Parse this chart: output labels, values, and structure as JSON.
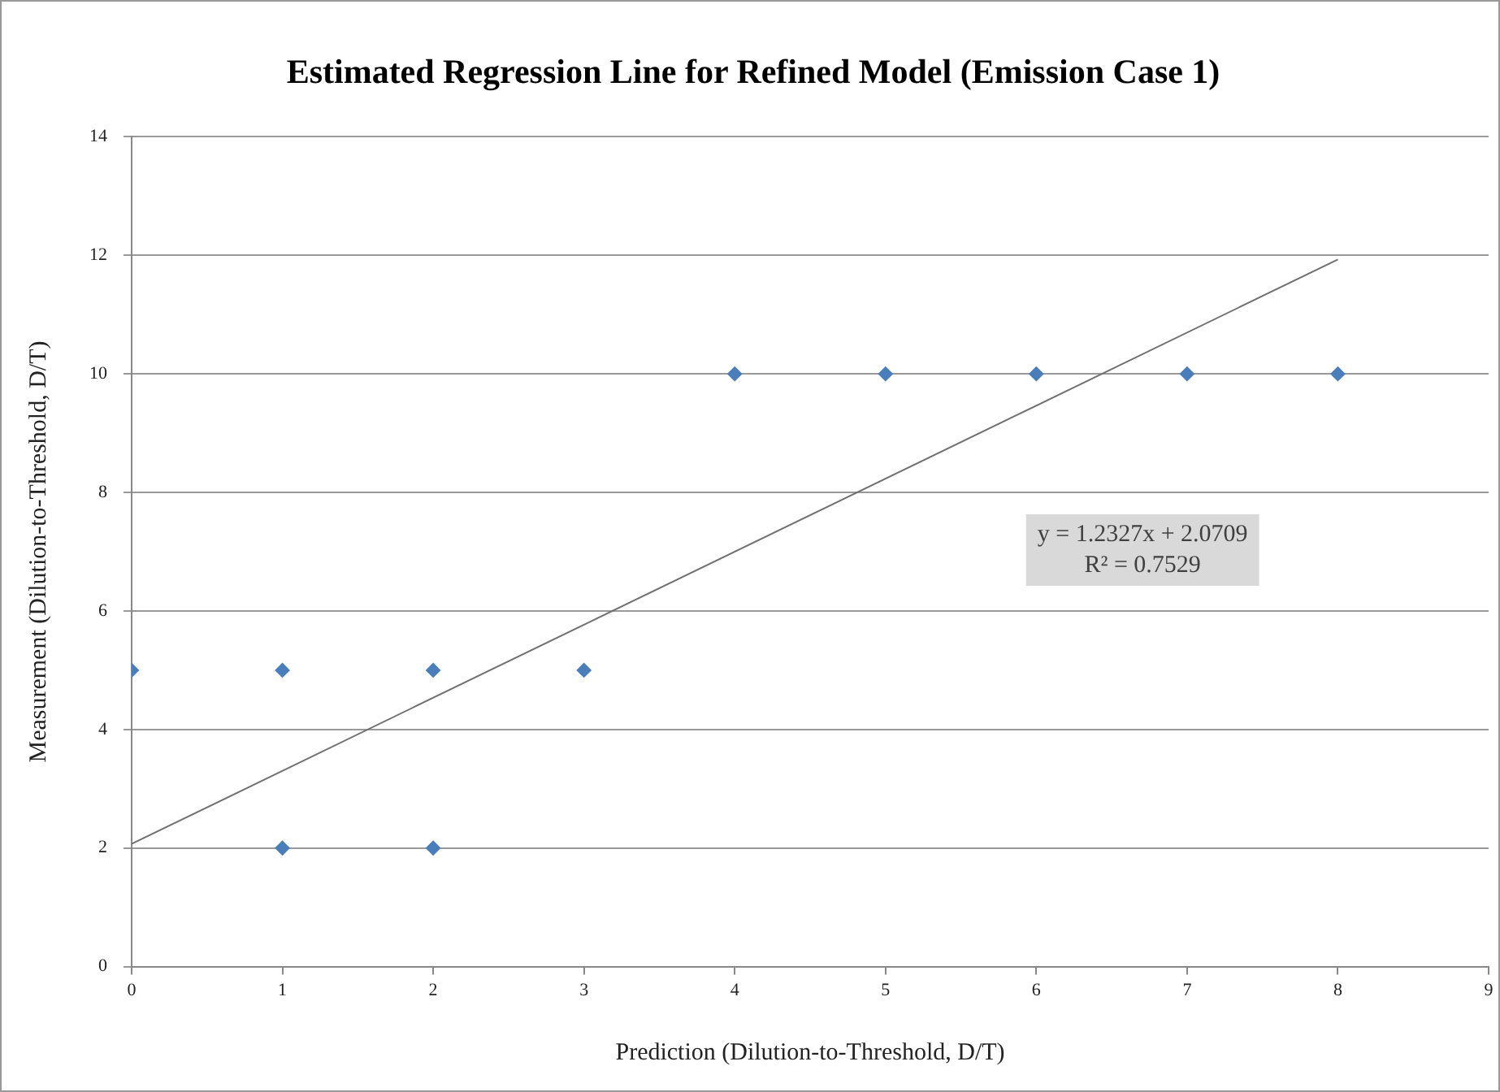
{
  "chart_data": {
    "type": "scatter",
    "title": "Estimated Regression Line for Refined Model (Emission Case 1)",
    "xlabel": "Prediction (Dilution-to-Threshold, D/T)",
    "ylabel": "Measurement (Dilution-to-Threshold, D/T)",
    "series": [
      {
        "type": "scatter",
        "color": "#4a7ebb",
        "x": [
          0,
          1,
          1,
          2,
          2,
          3,
          4,
          5,
          6,
          7,
          8
        ],
        "values": [
          5,
          5,
          2,
          5,
          2,
          5,
          10,
          10,
          10,
          10,
          10
        ]
      },
      {
        "type": "line",
        "color": "#707070",
        "marker": "none",
        "x": [
          0,
          8
        ],
        "values": [
          2.07,
          11.93
        ]
      }
    ],
    "xlim": [
      0,
      9
    ],
    "xticks": [
      0,
      1,
      2,
      3,
      4,
      5,
      6,
      7,
      8,
      9
    ],
    "ylim": [
      0,
      14
    ],
    "yticks": [
      0,
      2,
      4,
      6,
      8,
      10,
      12,
      14
    ],
    "grid": "y",
    "legend": false,
    "marker": "diamond",
    "line_style": "solid",
    "annotations": [
      "y = 1.2327x + 2.0709",
      "R² = 0.7529"
    ]
  }
}
